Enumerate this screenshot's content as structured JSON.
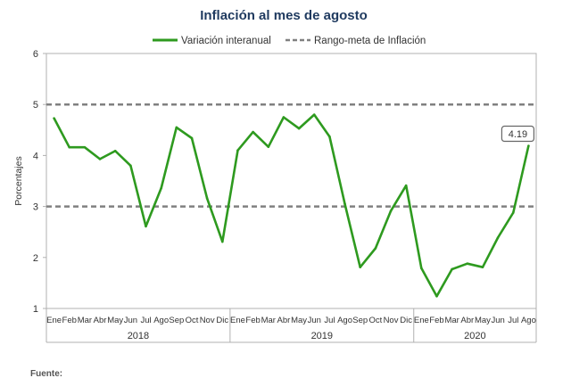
{
  "chart_data": {
    "type": "line",
    "title": "Inflación al mes de agosto",
    "ylabel": "Porcentajes",
    "xlabel": "",
    "ylim": [
      1,
      6
    ],
    "yticks": [
      1,
      2,
      3,
      4,
      5,
      6
    ],
    "grid": false,
    "legend_position": "top-center",
    "categories": [
      "Ene",
      "Feb",
      "Mar",
      "Abr",
      "May",
      "Jun",
      "Jul",
      "Ago",
      "Sep",
      "Oct",
      "Nov",
      "Dic",
      "Ene",
      "Feb",
      "Mar",
      "Abr",
      "May",
      "Jun",
      "Jul",
      "Ago",
      "Sep",
      "Oct",
      "Nov",
      "Dic",
      "Ene",
      "Feb",
      "Mar",
      "Abr",
      "May",
      "Jun",
      "Jul",
      "Ago"
    ],
    "year_groups": [
      {
        "label": "2018",
        "count": 12
      },
      {
        "label": "2019",
        "count": 12
      },
      {
        "label": "2020",
        "count": 8
      }
    ],
    "series": [
      {
        "name": "Variación interanual",
        "color": "#2e9a1f",
        "values": [
          4.73,
          4.16,
          4.16,
          3.93,
          4.09,
          3.8,
          2.61,
          3.36,
          4.55,
          4.34,
          3.16,
          2.31,
          4.1,
          4.46,
          4.17,
          4.75,
          4.53,
          4.8,
          4.37,
          3.05,
          1.81,
          2.18,
          2.91,
          3.41,
          1.79,
          1.24,
          1.77,
          1.88,
          1.81,
          2.39,
          2.88,
          4.19
        ]
      }
    ],
    "reference_lines": [
      {
        "name": "Rango-meta de Inflación",
        "color": "#808080",
        "values": [
          3,
          5
        ]
      }
    ],
    "annotations": [
      {
        "text": "4.19",
        "category_index": 31,
        "value": 4.19
      }
    ]
  },
  "footer": {
    "source_label": "Fuente:"
  }
}
